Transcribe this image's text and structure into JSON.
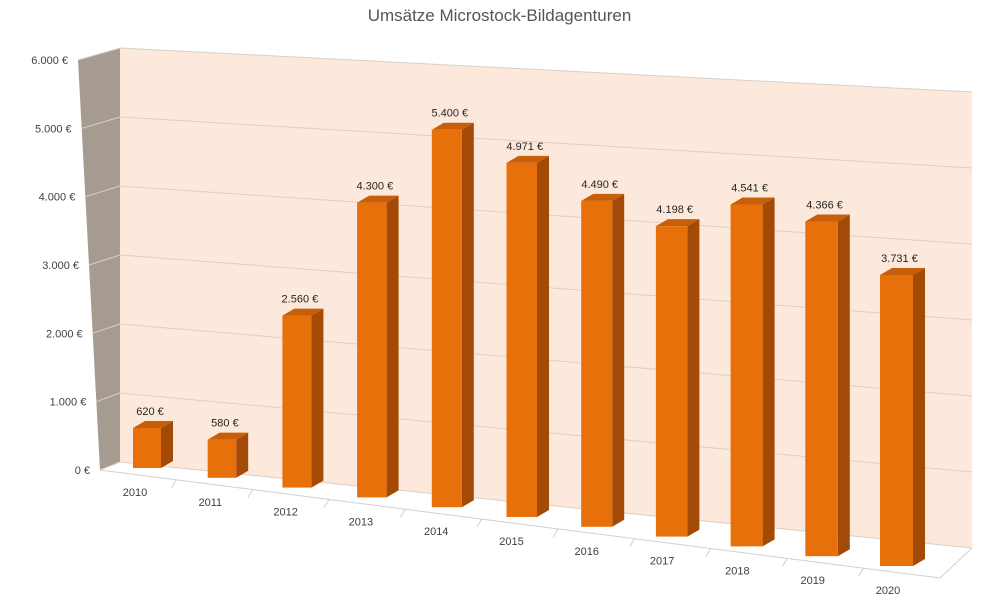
{
  "chart_data": {
    "type": "bar",
    "title": "Umsätze Microstock-Bildagenturen",
    "categories": [
      "2010",
      "2011",
      "2012",
      "2013",
      "2014",
      "2015",
      "2016",
      "2017",
      "2018",
      "2019",
      "2020"
    ],
    "values": [
      620,
      580,
      2560,
      4300,
      5400,
      4971,
      4490,
      4198,
      4541,
      4366,
      3731
    ],
    "value_labels": [
      "620 €",
      "580 €",
      "2.560 €",
      "4.300 €",
      "5.400 €",
      "4.971 €",
      "4.490 €",
      "4.198 €",
      "4.541 €",
      "4.366 €",
      "3.731 €"
    ],
    "ylim": [
      0,
      6000
    ],
    "y_ticks": [
      0,
      1000,
      2000,
      3000,
      4000,
      5000,
      6000
    ],
    "y_tick_labels": [
      "0 €",
      "1.000 €",
      "2.000 €",
      "3.000 €",
      "4.000 €",
      "5.000 €",
      "6.000 €"
    ],
    "xlabel": "",
    "ylabel": "",
    "grid": true,
    "legend": "none",
    "style": "3d-perspective",
    "colors": {
      "bar_front": "#e8700b",
      "bar_top": "#c75f0a",
      "bar_side": "#a34a06",
      "back_wall": "#fde9db",
      "side_wall": "#a69b91",
      "gridline": "#d9cfc6"
    }
  }
}
